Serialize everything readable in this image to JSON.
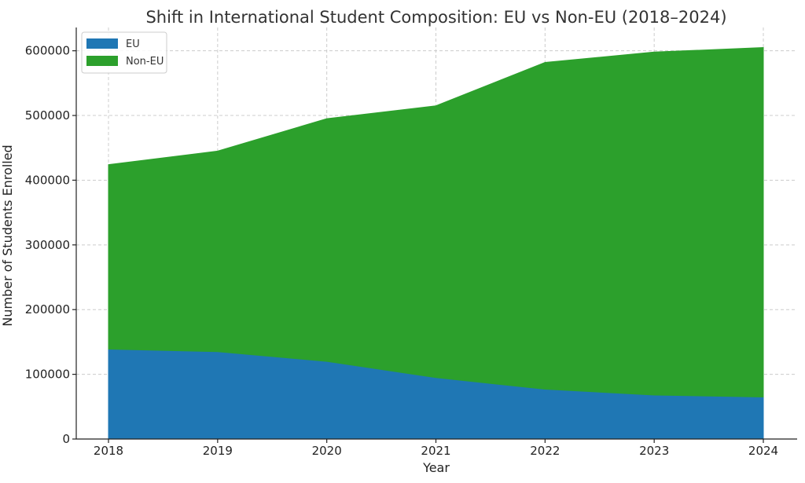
{
  "chart_data": {
    "type": "area",
    "stacked": true,
    "title": "Shift in International Student Composition: EU vs Non-EU (2018–2024)",
    "xlabel": "Year",
    "ylabel": "Number of Students Enrolled",
    "x": [
      "2018",
      "2019",
      "2020",
      "2021",
      "2022",
      "2023",
      "2024"
    ],
    "xlim": [
      2018,
      2024
    ],
    "ylim": [
      0,
      636000
    ],
    "yticks": [
      0,
      100000,
      200000,
      300000,
      400000,
      500000,
      600000
    ],
    "yticklabels": [
      "0",
      "100000",
      "200000",
      "300000",
      "400000",
      "500000",
      "600000"
    ],
    "series": [
      {
        "name": "EU",
        "color": "#1f77b4",
        "values": [
          139000,
          135000,
          120000,
          95000,
          77000,
          68000,
          65000
        ]
      },
      {
        "name": "Non-EU",
        "color": "#2ca02c",
        "values": [
          285000,
          310000,
          375000,
          420000,
          505000,
          530000,
          540000
        ]
      }
    ],
    "grid": true,
    "legend": "top-left"
  }
}
